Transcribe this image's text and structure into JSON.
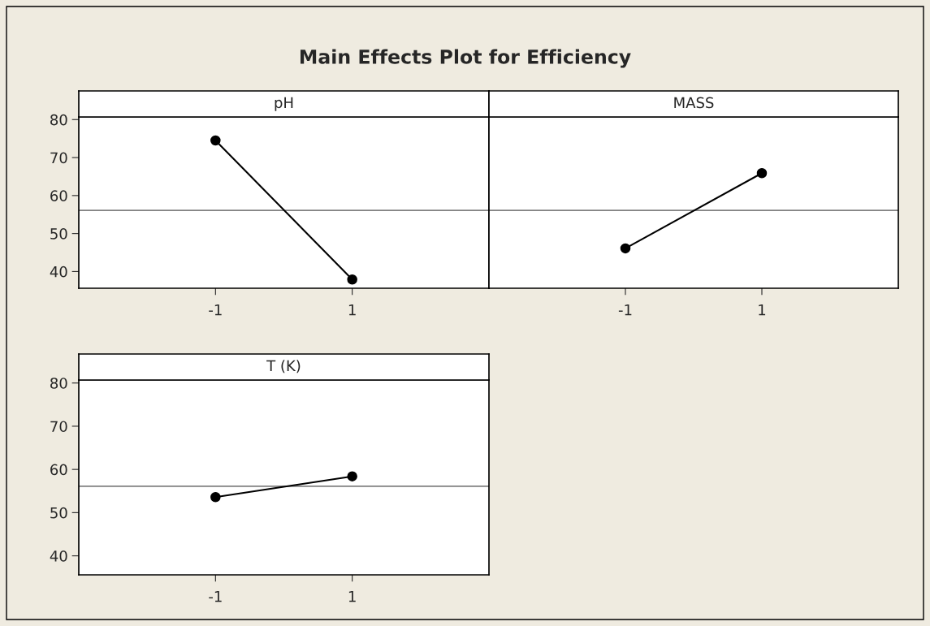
{
  "chart_data": [
    {
      "type": "line",
      "title": "pH",
      "annotations": [
        "Main Effects Plot for Efficiency"
      ],
      "categories": [
        "-1",
        "1"
      ],
      "ylim": [
        35.6,
        80.7
      ],
      "yticks": [
        40,
        50,
        60,
        70,
        80
      ],
      "marker": "circle",
      "series": [
        {
          "color": "#000000",
          "values": [
            74.5,
            37.9
          ]
        }
      ],
      "ref_lines": [
        {
          "axis": "y",
          "value": 56.1,
          "color": "#808080"
        }
      ]
    },
    {
      "type": "line",
      "title": "MASS",
      "categories": [
        "-1",
        "1"
      ],
      "ylim": [
        35.6,
        80.7
      ],
      "yticks": [
        40,
        50,
        60,
        70,
        80
      ],
      "tick_labels": "x",
      "marker": "circle",
      "series": [
        {
          "color": "#000000",
          "values": [
            46.1,
            65.9
          ]
        }
      ],
      "ref_lines": [
        {
          "axis": "y",
          "value": 56.1,
          "color": "#808080"
        }
      ]
    },
    {
      "type": "line",
      "title": "T (K)",
      "categories": [
        "-1",
        "1"
      ],
      "ylim": [
        35.6,
        80.7
      ],
      "yticks": [
        40,
        50,
        60,
        70,
        80
      ],
      "marker": "circle",
      "series": [
        {
          "color": "#000000",
          "values": [
            53.6,
            58.4
          ]
        }
      ],
      "ref_lines": [
        {
          "axis": "y",
          "value": 56.1,
          "color": "#808080"
        }
      ]
    }
  ]
}
